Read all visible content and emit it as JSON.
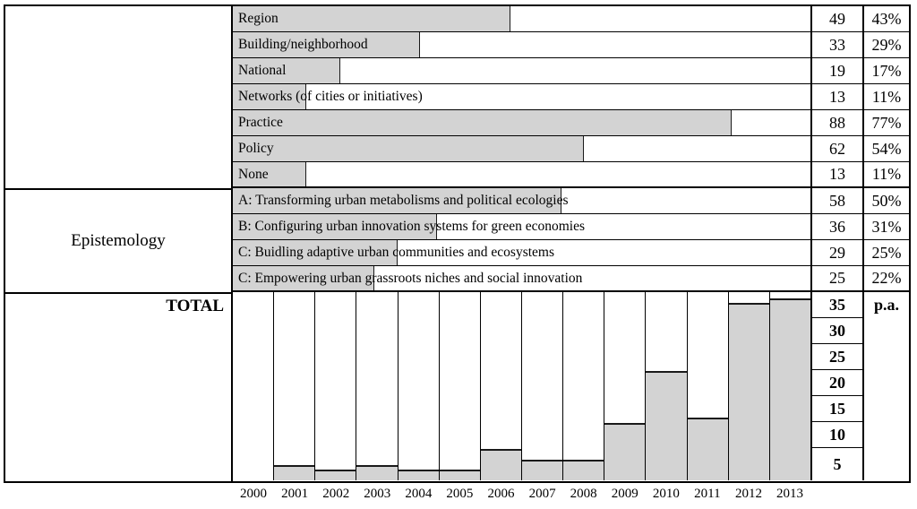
{
  "left_column": {
    "blank_label": "",
    "epistemology_label": "Epistemology",
    "total_label": "TOTAL"
  },
  "rows": [
    {
      "label": "Region",
      "count": "49",
      "percent": "43%",
      "value": 49,
      "section": "scope"
    },
    {
      "label": "Building/neighborhood",
      "count": "33",
      "percent": "29%",
      "value": 33,
      "section": "scope"
    },
    {
      "label": "National",
      "count": "19",
      "percent": "17%",
      "value": 19,
      "section": "scope"
    },
    {
      "label": "Networks (of cities or initiatives)",
      "count": "13",
      "percent": "11%",
      "value": 13,
      "section": "scope"
    },
    {
      "label": "Practice",
      "count": "88",
      "percent": "77%",
      "value": 88,
      "section": "scope"
    },
    {
      "label": "Policy",
      "count": "62",
      "percent": "54%",
      "value": 62,
      "section": "scope"
    },
    {
      "label": "None",
      "count": "13",
      "percent": "11%",
      "value": 13,
      "section": "scope",
      "section_end": true
    },
    {
      "label": "A: Transforming urban metabolisms and political ecologies",
      "count": "58",
      "percent": "50%",
      "value": 58,
      "section": "epistemology"
    },
    {
      "label": "B: Configuring urban innovation systems for green economies",
      "count": "36",
      "percent": "31%",
      "value": 36,
      "section": "epistemology"
    },
    {
      "label": "C: Buidling adaptive urban communities and ecosystems",
      "count": "29",
      "percent": "25%",
      "value": 29,
      "section": "epistemology"
    },
    {
      "label": "C: Empowering urban grassroots niches and social innovation",
      "count": "25",
      "percent": "22%",
      "value": 25,
      "section": "epistemology",
      "section_end": true
    }
  ],
  "chart_data": [
    {
      "type": "bar",
      "orientation": "horizontal",
      "title": "Category distribution (share of reviewed papers)",
      "categories": [
        "Region",
        "Building/neighborhood",
        "National",
        "Networks (of cities or initiatives)",
        "Practice",
        "Policy",
        "None",
        "A: Transforming urban metabolisms and political ecologies",
        "B: Configuring urban innovation systems for green economies",
        "C: Buidling adaptive urban communities and ecosystems",
        "C: Empowering urban grassroots niches and social innovation"
      ],
      "values": [
        49,
        33,
        19,
        13,
        88,
        62,
        13,
        58,
        36,
        29,
        25
      ],
      "percent_labels": [
        "43%",
        "29%",
        "17%",
        "11%",
        "77%",
        "54%",
        "11%",
        "50%",
        "31%",
        "25%",
        "22%"
      ],
      "xlim": [
        0,
        102
      ],
      "grid": false
    },
    {
      "type": "bar",
      "orientation": "vertical",
      "title": "Publications per annum",
      "categories": [
        "2000",
        "2001",
        "2002",
        "2003",
        "2004",
        "2005",
        "2006",
        "2007",
        "2008",
        "2009",
        "2010",
        "2011",
        "2012",
        "2013"
      ],
      "values": [
        0,
        3,
        2,
        3,
        2,
        2,
        6,
        4,
        4,
        11,
        21,
        12,
        34,
        35
      ],
      "ylabel": "p.a.",
      "ytick_labels": [
        "35",
        "30",
        "25",
        "20",
        "15",
        "10",
        "5"
      ],
      "ylim": [
        0,
        36.5
      ],
      "grid": false,
      "bar_color": "#d3d3d3"
    }
  ],
  "colors": {
    "bar_fill": "#d3d3d3",
    "border": "#000000",
    "background": "#ffffff"
  }
}
